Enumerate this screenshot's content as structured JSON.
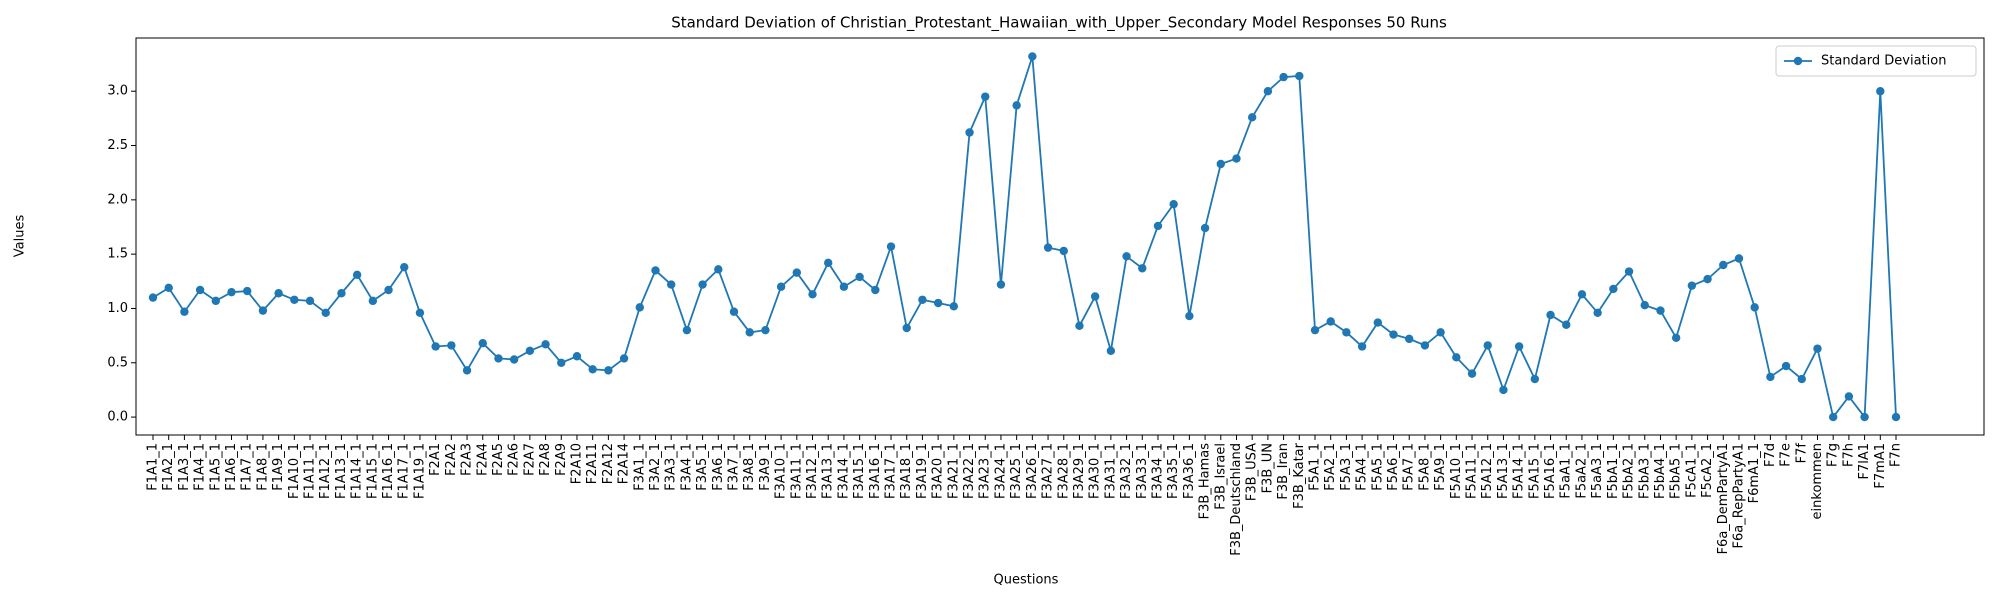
{
  "chart_data": {
    "type": "line",
    "title": "Standard Deviation of Christian_Protestant_Hawaiian_with_Upper_Secondary Model Responses 50 Runs",
    "xlabel": "Questions",
    "ylabel": "Values",
    "categories": [
      "F1A1_1",
      "F1A2_1",
      "F1A3_1",
      "F1A4_1",
      "F1A5_1",
      "F1A6_1",
      "F1A7_1",
      "F1A8_1",
      "F1A9_1",
      "F1A10_1",
      "F1A11_1",
      "F1A12_1",
      "F1A13_1",
      "F1A14_1",
      "F1A15_1",
      "F1A16_1",
      "F1A17_1",
      "F1A19_1",
      "F2A1",
      "F2A2",
      "F2A3",
      "F2A4",
      "F2A5",
      "F2A6",
      "F2A7",
      "F2A8",
      "F2A9",
      "F2A10",
      "F2A11",
      "F2A12",
      "F2A14",
      "F3A1_1",
      "F3A2_1",
      "F3A3_1",
      "F3A4_1",
      "F3A5_1",
      "F3A6_1",
      "F3A7_1",
      "F3A8_1",
      "F3A9_1",
      "F3A10_1",
      "F3A11_1",
      "F3A12_1",
      "F3A13_1",
      "F3A14_1",
      "F3A15_1",
      "F3A16_1",
      "F3A17_1",
      "F3A18_1",
      "F3A19_1",
      "F3A20_1",
      "F3A21_1",
      "F3A22_1",
      "F3A23_1",
      "F3A24_1",
      "F3A25_1",
      "F3A26_1",
      "F3A27_1",
      "F3A28_1",
      "F3A29_1",
      "F3A30_1",
      "F3A31_1",
      "F3A32_1",
      "F3A33_1",
      "F3A34_1",
      "F3A35_1",
      "F3A36_1",
      "F3B_Hamas",
      "F3B_Israel",
      "F3B_Deutschland",
      "F3B_USA",
      "F3B_UN",
      "F3B_Iran",
      "F3B_Katar",
      "F5A1_1",
      "F5A2_1",
      "F5A3_1",
      "F5A4_1",
      "F5A5_1",
      "F5A6_1",
      "F5A7_1",
      "F5A8_1",
      "F5A9_1",
      "F5A10_1",
      "F5A11_1",
      "F5A12_1",
      "F5A13_1",
      "F5A14_1",
      "F5A15_1",
      "F5A16_1",
      "F5aA1_1",
      "F5aA2_1",
      "F5aA3_1",
      "F5bA1_1",
      "F5bA2_1",
      "F5bA3_1",
      "F5bA4_1",
      "F5bA5_1",
      "F5cA1_1",
      "F5cA2_1",
      "F6a_DemPartyA1",
      "F6a_RepPartyA1",
      "F6mA1_1",
      "F7d",
      "F7e",
      "F7f",
      "einkommen",
      "F7g",
      "F7h",
      "F7lA1",
      "F7mA1",
      "F7n"
    ],
    "series": [
      {
        "name": "Standard Deviation",
        "color": "#1f77b4",
        "values": [
          1.1,
          1.19,
          0.97,
          1.17,
          1.07,
          1.15,
          1.16,
          0.98,
          1.14,
          1.08,
          1.07,
          0.96,
          1.14,
          1.31,
          1.07,
          1.17,
          1.38,
          0.96,
          0.65,
          0.66,
          0.43,
          0.68,
          0.54,
          0.53,
          0.61,
          0.67,
          0.5,
          0.56,
          0.44,
          0.43,
          0.54,
          1.01,
          1.35,
          1.22,
          0.8,
          1.22,
          1.36,
          0.97,
          0.78,
          0.8,
          1.2,
          1.33,
          1.13,
          1.42,
          1.2,
          1.29,
          1.17,
          1.57,
          0.82,
          1.08,
          1.05,
          1.02,
          2.62,
          2.95,
          1.22,
          2.87,
          3.32,
          1.56,
          1.53,
          0.84,
          1.11,
          0.61,
          1.48,
          1.37,
          1.76,
          1.96,
          0.93,
          1.74,
          2.33,
          2.38,
          2.76,
          3.0,
          3.13,
          3.14,
          0.8,
          0.88,
          0.78,
          0.65,
          0.87,
          0.76,
          0.72,
          0.66,
          0.78,
          0.55,
          0.4,
          0.66,
          0.25,
          0.65,
          0.35,
          0.94,
          0.85,
          1.13,
          0.96,
          1.18,
          1.34,
          1.03,
          0.98,
          0.73,
          1.21,
          1.27,
          1.4,
          1.46,
          1.01,
          0.37,
          0.47,
          0.35,
          0.63,
          0,
          0.19,
          0,
          3.0,
          0
        ]
      }
    ],
    "ylim": [
      -0.165,
      3.49
    ],
    "yticks": [
      {
        "value": 0,
        "label": "0.0"
      },
      0.5,
      {
        "value": 1,
        "label": "1.0"
      },
      1.5,
      {
        "value": 2,
        "label": "2.0"
      },
      2.5,
      {
        "value": 3,
        "label": "3.0"
      }
    ],
    "legend": "upper right",
    "grid": false
  }
}
